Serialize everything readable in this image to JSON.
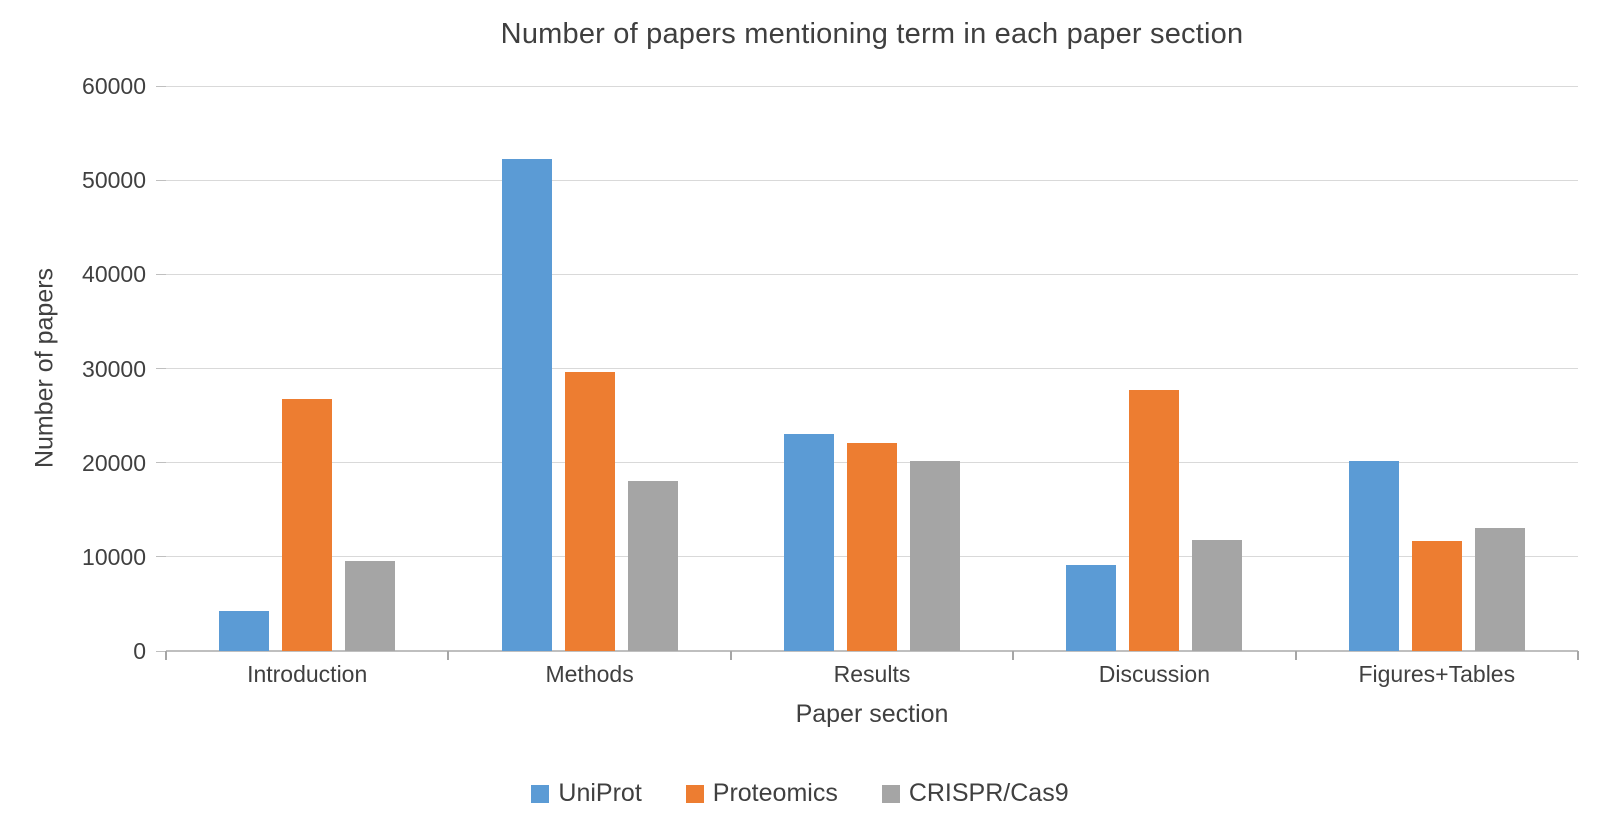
{
  "chart_data": {
    "type": "bar",
    "title": "Number of papers mentioning term in each paper section",
    "xlabel": "Paper section",
    "ylabel": "Number of papers",
    "categories": [
      "Introduction",
      "Methods",
      "Results",
      "Discussion",
      "Figures+Tables"
    ],
    "series": [
      {
        "name": "UniProt",
        "color": "#5B9BD5",
        "values": [
          4200,
          52200,
          23100,
          9100,
          20200
        ]
      },
      {
        "name": "Proteomics",
        "color": "#ED7D31",
        "values": [
          26800,
          29600,
          22100,
          27700,
          11700
        ]
      },
      {
        "name": "CRISPR/Cas9",
        "color": "#A5A5A5",
        "values": [
          9600,
          18100,
          20200,
          11800,
          13100
        ]
      }
    ],
    "ylim": [
      0,
      60000
    ],
    "yticks": [
      0,
      10000,
      20000,
      30000,
      40000,
      50000,
      60000
    ],
    "ytick_labels": [
      "0",
      "10000",
      "20000",
      "30000",
      "40000",
      "50000",
      "60000"
    ],
    "grid": "horizontal",
    "legend_position": "bottom"
  },
  "style_colors": {
    "gridline": "#D9D9D9",
    "axis_line": "#BFBFBF",
    "text": "#404040"
  }
}
